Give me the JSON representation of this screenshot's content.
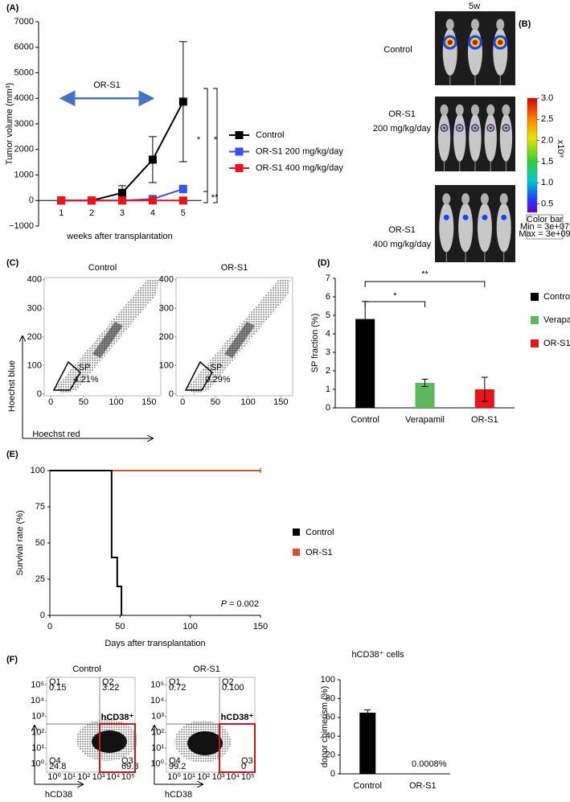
{
  "chart_data": [
    {
      "type": "line",
      "panel": "(A)",
      "x": [
        1,
        2,
        3,
        4,
        5
      ],
      "xlim": [
        0.25,
        5.6
      ],
      "xticks": [
        1,
        2,
        3,
        4,
        5
      ],
      "ylim": [
        -1000,
        7000
      ],
      "yticks": [
        {
          "value": -1000,
          "label": "−1000"
        },
        0,
        1000,
        2000,
        3000,
        4000,
        5000,
        6000,
        7000
      ],
      "xlabel": "weeks after transplantation",
      "ylabel": "Tumor volume (mm³)",
      "series": [
        {
          "name": "Control",
          "color": "#000000",
          "values": [
            0,
            0,
            300,
            1600,
            3870
          ],
          "errors": [
            0,
            0,
            280,
            900,
            2350
          ]
        },
        {
          "name": "OR-S1 200 mg/kg/day",
          "color": "#3355ee",
          "values": [
            0,
            0,
            0,
            60,
            450
          ],
          "errors": [
            0,
            0,
            0,
            30,
            150
          ]
        },
        {
          "name": "OR-S1 400 mg/kg/day",
          "color": "#e8141a",
          "values": [
            0,
            0,
            0,
            0,
            0
          ],
          "errors": [
            0,
            0,
            0,
            0,
            0
          ]
        }
      ],
      "legend": "right",
      "arrow": {
        "label": "OR-S1",
        "x": [
          1,
          4
        ],
        "y": 4000,
        "color": "#4472c4"
      },
      "significance": [
        "*",
        "*",
        "**"
      ]
    },
    {
      "type": "flow",
      "panel": "(C)",
      "plots": [
        {
          "title": "Control",
          "gate": "SP",
          "gate_value": "4.21%"
        },
        {
          "title": "OR-S1",
          "gate": "SP",
          "gate_value": "0.29%"
        }
      ],
      "xlim": [
        -10,
        168
      ],
      "xticks": [
        0,
        50,
        100,
        150
      ],
      "ylim": [
        -6,
        408
      ],
      "yticks": [
        0,
        100,
        200,
        300,
        400
      ],
      "xlabel": "Hoechst red",
      "ylabel": "Hoechst blue"
    },
    {
      "type": "bar",
      "panel": "(D)",
      "categories": [
        "Control",
        "Verapamil",
        "OR-S1"
      ],
      "values": [
        4.8,
        1.35,
        1.0
      ],
      "errors": [
        0.95,
        0.2,
        0.65
      ],
      "colors": [
        "#000000",
        "#5cb85c",
        "#e8141a"
      ],
      "ylim": [
        0,
        7
      ],
      "yticks": [
        0,
        1,
        2,
        3,
        4,
        5,
        6,
        7
      ],
      "ylabel": "SP fraction (%)",
      "legend": "right",
      "significance": [
        "**",
        "*"
      ]
    },
    {
      "type": "step",
      "panel": "(E)",
      "series": [
        {
          "name": "Control",
          "color": "#000000",
          "x": [
            0,
            44,
            44,
            48,
            48,
            51,
            51
          ],
          "values": [
            100,
            100,
            40,
            40,
            20,
            20,
            0
          ]
        },
        {
          "name": "OR-S1",
          "color": "#d9542b",
          "x": [
            0,
            150
          ],
          "values": [
            100,
            100
          ]
        }
      ],
      "xlim": [
        0,
        150
      ],
      "xticks": [
        0,
        50,
        100,
        150
      ],
      "ylim": [
        0,
        100
      ],
      "yticks": [
        0,
        25,
        50,
        75,
        100
      ],
      "xlabel": "Days after transplantation",
      "ylabel": "Survival rate (%)",
      "legend": "right",
      "p_label": "P",
      "p_value": "= 0.002"
    },
    {
      "type": "flow-log",
      "panel": "(F)",
      "log_scale": true,
      "plots": [
        {
          "title": "Control",
          "quadrants": [
            "Q1",
            "0.15",
            "Q2",
            "3.22",
            "Q4",
            "24.8",
            "Q3",
            "69.8"
          ],
          "gate": "hCD38⁺"
        },
        {
          "title": "OR-S1",
          "quadrants": [
            "Q1",
            "0.72",
            "Q2",
            "0.100",
            "Q4",
            "99.2",
            "Q3",
            "0"
          ],
          "gate": "hCD38⁺"
        }
      ],
      "xlim": [
        0.3,
        300000
      ],
      "ylim": [
        0.3,
        300000
      ],
      "xticks": [
        {
          "value": 1,
          "label": "10⁰"
        },
        {
          "value": 10,
          "label": "10¹"
        },
        {
          "value": 100,
          "label": "10²"
        },
        {
          "value": 1000,
          "label": "10³"
        },
        {
          "value": 10000,
          "label": "10⁴"
        },
        {
          "value": 100000,
          "label": "10⁵"
        }
      ],
      "yticks": [
        {
          "value": 1,
          "label": "10⁰"
        },
        {
          "value": 10,
          "label": "10¹"
        },
        {
          "value": 100,
          "label": "10²"
        },
        {
          "value": 1000,
          "label": "10³"
        },
        {
          "value": 10000,
          "label": "10⁴"
        },
        {
          "value": 100000,
          "label": "10⁵"
        }
      ],
      "xlabel": "hCD38"
    },
    {
      "type": "bar",
      "title": "hCD38⁺ cells",
      "categories": [
        "Control",
        "OR-S1"
      ],
      "values": [
        65,
        0.0008
      ],
      "value_labels": [
        null,
        "0.0008%"
      ],
      "errors": [
        3,
        0
      ],
      "colors": [
        "#000000",
        "#e8141a"
      ],
      "ylim": [
        0,
        100
      ],
      "yticks": [
        0,
        20,
        40,
        60,
        80,
        100
      ],
      "ylabel": "donor chimerism (%)"
    }
  ],
  "imaging": {
    "panel": "(B)",
    "timepoint": "5w",
    "groups": [
      {
        "name": "Control"
      },
      {
        "name": "OR-S1",
        "dose": "200 mg/kg/day"
      },
      {
        "name": "OR-S1",
        "dose": "400 mg/kg/day"
      }
    ],
    "colorbar": {
      "label": "x10⁹",
      "lim": [
        0.3,
        3.0
      ],
      "ticks": [
        0.5,
        {
          "value": 1,
          "label": "1.0"
        },
        1.5,
        {
          "value": 2,
          "label": "2.0"
        },
        2.5,
        {
          "value": 3,
          "label": "3.0"
        }
      ],
      "box": [
        "Color bar",
        "Min = 3e+07",
        "Max = 3e+09"
      ]
    }
  }
}
